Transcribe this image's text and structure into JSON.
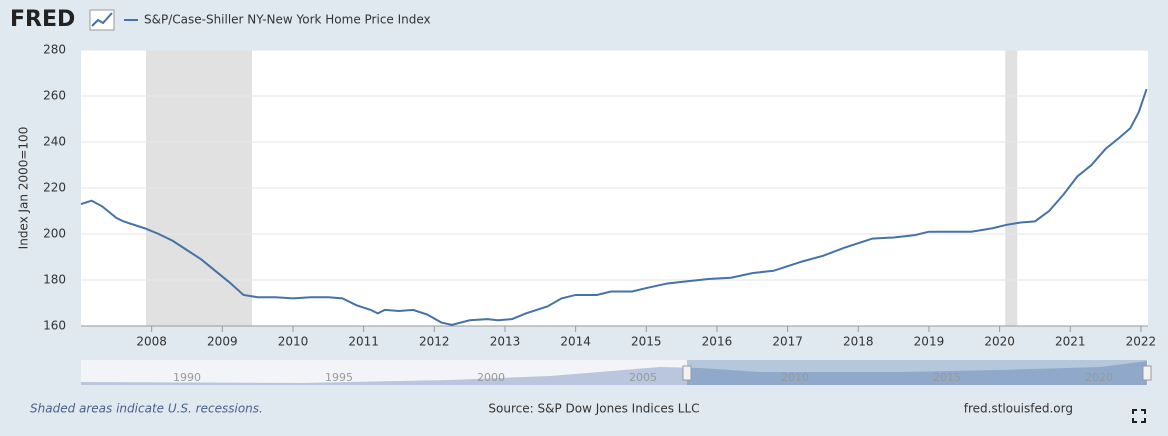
{
  "logo": "FRED",
  "chart_data": {
    "type": "line",
    "series": [
      {
        "name": "S&P/Case-Shiller NY-New York Home Price Index",
        "color": "#4572a7",
        "values": [
          213,
          214.5,
          212,
          207,
          205.5,
          202.5,
          200,
          197,
          193,
          189,
          184,
          179,
          173.5,
          172.5,
          172.5,
          172,
          172.5,
          172.5,
          172,
          169,
          167,
          165.5,
          167,
          166.5,
          167,
          165,
          161.5,
          160.5,
          162.5,
          163,
          162.5,
          163,
          165.5,
          168.5,
          172,
          173.5,
          173.5,
          175,
          175,
          176.5,
          178.5,
          179.5,
          180.5,
          181,
          183,
          184,
          186,
          188,
          190.5,
          194,
          196,
          198,
          198.5,
          199.5,
          201,
          201,
          201,
          202.5,
          204,
          205,
          205.5,
          210,
          217,
          225,
          230,
          237,
          242,
          246,
          253,
          263
        ]
      }
    ],
    "x": [
      2007.0,
      2007.15,
      2007.3,
      2007.5,
      2007.6,
      2007.9,
      2008.1,
      2008.3,
      2008.5,
      2008.7,
      2008.9,
      2009.1,
      2009.3,
      2009.5,
      2009.75,
      2010.0,
      2010.25,
      2010.5,
      2010.7,
      2010.9,
      2011.1,
      2011.2,
      2011.3,
      2011.5,
      2011.7,
      2011.9,
      2012.1,
      2012.25,
      2012.5,
      2012.75,
      2012.9,
      2013.1,
      2013.3,
      2013.6,
      2013.8,
      2014.0,
      2014.3,
      2014.5,
      2014.8,
      2015.0,
      2015.3,
      2015.6,
      2015.9,
      2016.2,
      2016.5,
      2016.8,
      2017.0,
      2017.2,
      2017.5,
      2017.8,
      2018.0,
      2018.2,
      2018.5,
      2018.8,
      2019.0,
      2019.3,
      2019.6,
      2019.9,
      2020.1,
      2020.3,
      2020.5,
      2020.7,
      2020.9,
      2021.1,
      2021.3,
      2021.5,
      2021.7,
      2021.85,
      2021.97,
      2022.08
    ],
    "xlim": [
      2007.0,
      2022.1
    ],
    "xticks": [
      2008,
      2009,
      2010,
      2011,
      2012,
      2013,
      2014,
      2015,
      2016,
      2017,
      2018,
      2019,
      2020,
      2021,
      2022
    ],
    "ylim": [
      160,
      280
    ],
    "yticks": [
      160,
      180,
      200,
      220,
      240,
      260,
      280
    ],
    "ylabel": "Index Jan 2000=100",
    "grid": true,
    "recessions": [
      [
        2007.92,
        2009.42
      ],
      [
        2020.08,
        2020.25
      ]
    ]
  },
  "navigator": {
    "labels": [
      "1990",
      "1995",
      "2000",
      "2005",
      "2010",
      "2015",
      "2020"
    ]
  },
  "footer": {
    "note": "Shaded areas indicate U.S. recessions.",
    "source": "Source: S&P Dow Jones Indices LLC",
    "site": "fred.stlouisfed.org"
  }
}
